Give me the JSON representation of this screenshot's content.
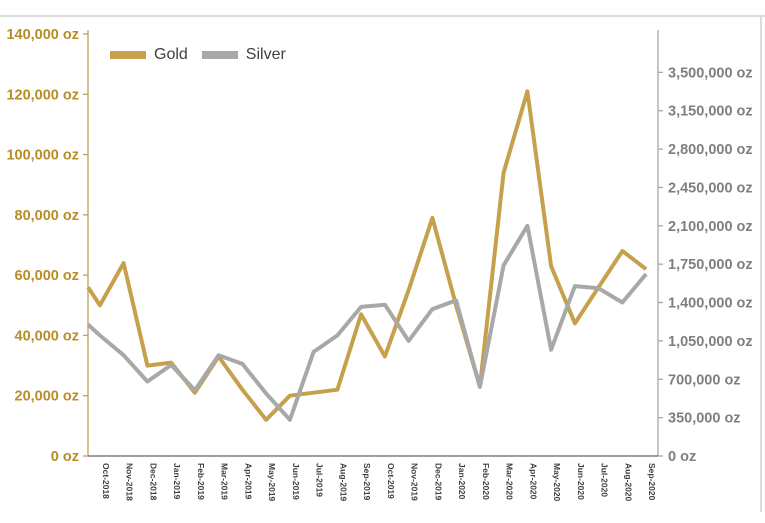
{
  "page": {
    "background": "#ffffff",
    "border_color": "#dcdcdc"
  },
  "chart_data": {
    "type": "line",
    "title": "",
    "categories": [
      "Oct-2018",
      "Nov-2018",
      "Dec-2018",
      "Jan-2019",
      "Feb-2019",
      "Mar-2019",
      "Apr-2019",
      "May-2019",
      "Jun-2019",
      "Jul-2019",
      "Aug-2019",
      "Sep-2019",
      "Oct-2019",
      "Nov-2019",
      "Dec-2019",
      "Jan-2020",
      "Feb-2020",
      "Mar-2020",
      "Apr-2020",
      "May-2020",
      "Jun-2020",
      "Jul-2020",
      "Aug-2020",
      "Sep-2020"
    ],
    "series": [
      {
        "name": "Gold",
        "axis": "left",
        "color": "#c6a04a",
        "values": [
          50000,
          64000,
          30000,
          31000,
          21000,
          33000,
          22000,
          12000,
          20000,
          21000,
          22000,
          47000,
          33000,
          55000,
          79000,
          50000,
          23000,
          94000,
          121000,
          63000,
          44000,
          56000,
          68000,
          62000
        ],
        "value_at_left_axis": 56000
      },
      {
        "name": "Silver",
        "axis": "right",
        "color": "#a8a8a8",
        "values": [
          1100000,
          920000,
          680000,
          830000,
          600000,
          920000,
          840000,
          570000,
          330000,
          950000,
          1100000,
          1360000,
          1380000,
          1050000,
          1340000,
          1420000,
          630000,
          1740000,
          2100000,
          970000,
          1550000,
          1530000,
          1400000,
          1660000
        ],
        "value_at_left_axis": 1200000
      }
    ],
    "left_axis": {
      "min": 0,
      "max": 140000,
      "tick_step": 20000,
      "unit": "oz",
      "labels": [
        "140,000 oz",
        "120,000 oz",
        "100,000 oz",
        "80,000 oz",
        "60,000 oz",
        "40,000 oz",
        "20,000 oz",
        "0 oz"
      ],
      "label_color": "#b88c26",
      "axis_color": "#bfa254"
    },
    "right_axis": {
      "min": 0,
      "max": 3850000,
      "tick_step": 350000,
      "unit": "oz",
      "labels": [
        "3,500,000 oz",
        "3,150,000 oz",
        "2,800,000 oz",
        "2,450,000 oz",
        "2,100,000 oz",
        "1,750,000 oz",
        "1,400,000 oz",
        "1,050,000 oz",
        "700,000 oz",
        "350,000 oz",
        "0 oz"
      ],
      "label_color": "#7f7f7f",
      "axis_color": "#a6a6a6"
    },
    "x_axis": {
      "label_color": "#3f3f3f",
      "axis_color": "#404040",
      "label_rotation_deg": 90
    },
    "legend": {
      "position": "top-left",
      "entries": [
        {
          "label": "Gold",
          "color": "#c6a04a"
        },
        {
          "label": "Silver",
          "color": "#a8a8a8"
        }
      ]
    },
    "grid": "off"
  }
}
